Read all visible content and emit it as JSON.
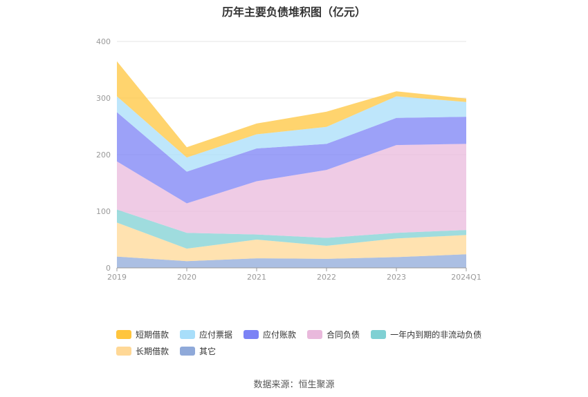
{
  "chart_data": {
    "type": "area",
    "stacked": true,
    "title": "历年主要负债堆积图（亿元）",
    "categories": [
      "2019",
      "2020",
      "2021",
      "2022",
      "2023",
      "2024Q1"
    ],
    "ylim": [
      0,
      400
    ],
    "yticks": [
      0,
      100,
      200,
      300,
      400
    ],
    "grid": true,
    "legend_position": "bottom",
    "series": [
      {
        "name": "其它",
        "color": "#8fa9d9",
        "values": [
          20,
          12,
          17,
          16,
          19,
          24
        ]
      },
      {
        "name": "长期借款",
        "color": "#ffd896",
        "values": [
          60,
          22,
          33,
          23,
          33,
          34
        ]
      },
      {
        "name": "一年内到期的非流动负债",
        "color": "#7fd0d3",
        "values": [
          23,
          28,
          9,
          14,
          10,
          9
        ]
      },
      {
        "name": "合同负债",
        "color": "#e9b9dc",
        "values": [
          85,
          52,
          94,
          120,
          155,
          152
        ]
      },
      {
        "name": "应付账款",
        "color": "#7b82f5",
        "values": [
          87,
          56,
          58,
          46,
          48,
          48
        ]
      },
      {
        "name": "应付票据",
        "color": "#a8defa",
        "values": [
          28,
          25,
          25,
          30,
          38,
          26
        ]
      },
      {
        "name": "短期借款",
        "color": "#ffc53d",
        "values": [
          62,
          18,
          19,
          27,
          9,
          6
        ]
      }
    ]
  },
  "legend": {
    "rows": [
      [
        "短期借款",
        "应付票据",
        "应付账款",
        "合同负债",
        "一年内到期的非流动负债"
      ],
      [
        "长期借款",
        "其它"
      ]
    ]
  },
  "source": "数据来源：恒生聚源"
}
